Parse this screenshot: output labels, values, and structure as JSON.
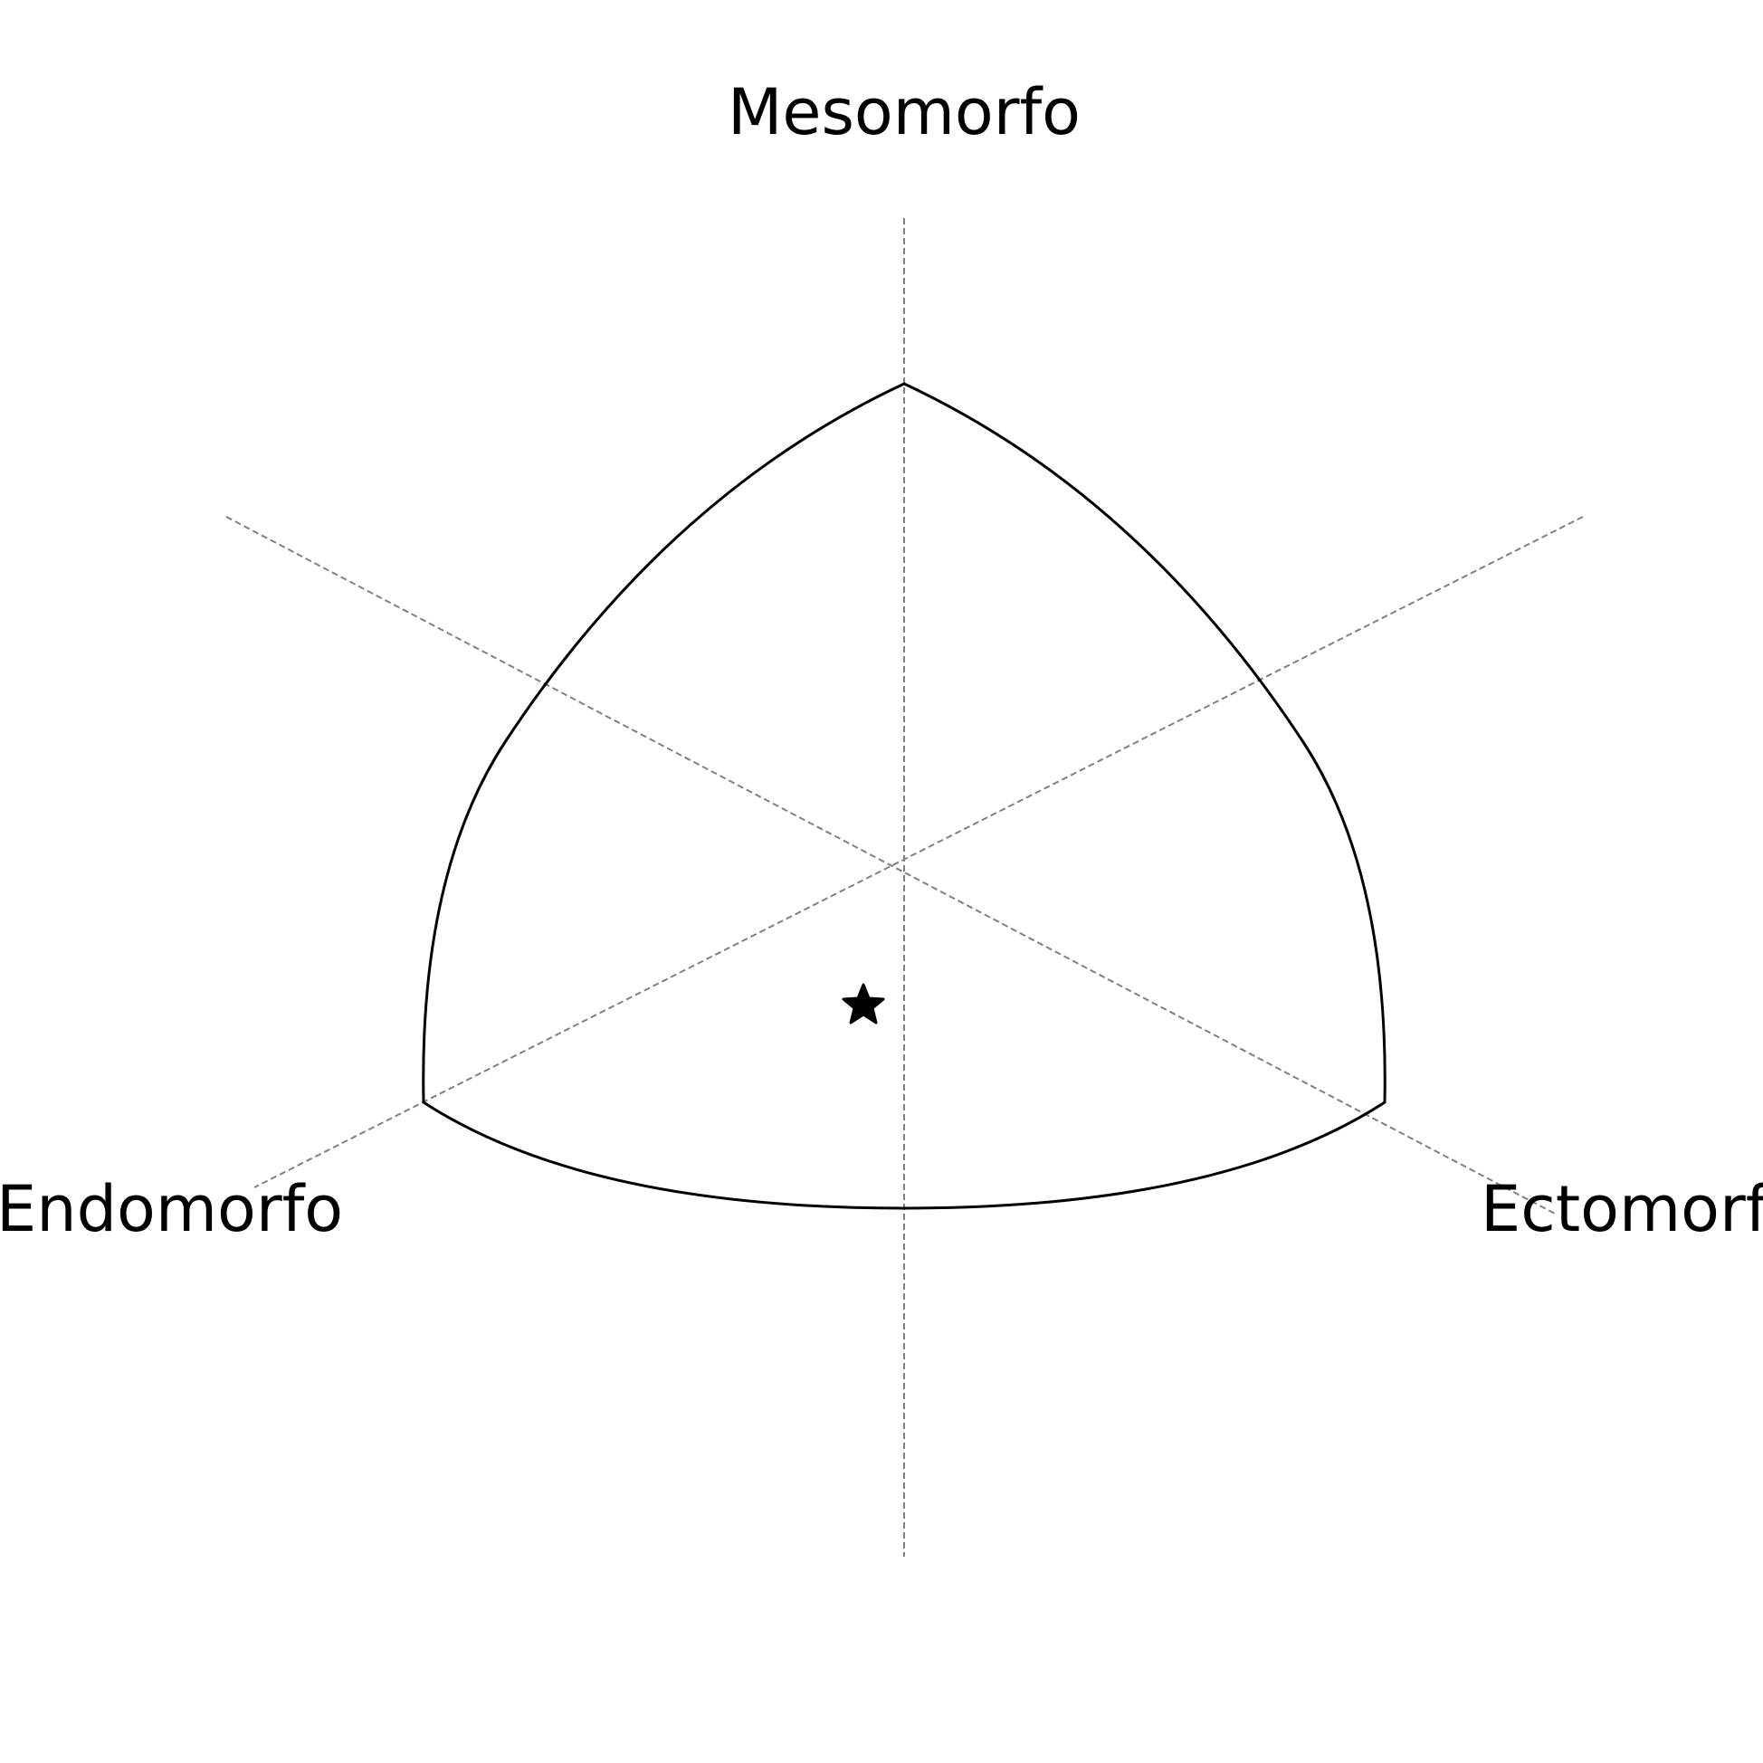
{
  "diagram": {
    "type": "somatochart",
    "labels": {
      "top": "Mesomorfo",
      "left": "Endomorfo",
      "right": "Ectomorfo"
    },
    "marker": {
      "shape": "star-icon",
      "color": "#000000"
    },
    "colors": {
      "outline": "#000000",
      "axes": "#808080",
      "background": "#ffffff"
    }
  }
}
